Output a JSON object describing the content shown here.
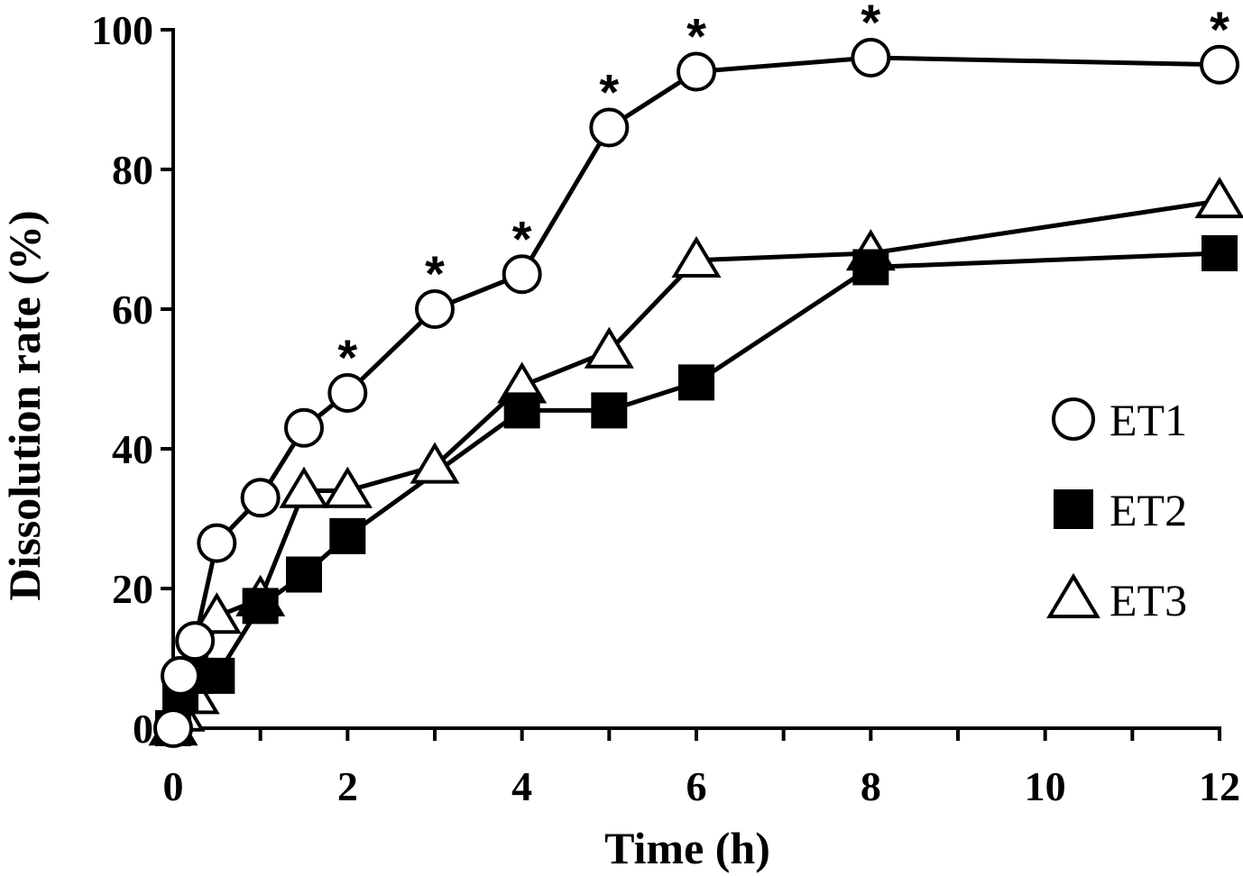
{
  "chart_data": {
    "type": "line",
    "xlabel": "Time (h)",
    "ylabel": "Dissolution rate  (%)",
    "xlim": [
      0,
      12
    ],
    "ylim": [
      0,
      100
    ],
    "x_ticks": [
      0,
      2,
      4,
      6,
      8,
      10,
      12
    ],
    "y_ticks": [
      0,
      20,
      40,
      60,
      80,
      100
    ],
    "grid": false,
    "legend_position": "right-middle",
    "series": [
      {
        "name": "ET1",
        "marker": "open-circle",
        "color": "#000000",
        "x": [
          0,
          0.083,
          0.25,
          0.5,
          1,
          1.5,
          2,
          3,
          4,
          5,
          6,
          8,
          12
        ],
        "y": [
          0,
          7.5,
          12.5,
          26.5,
          33,
          43,
          48,
          60,
          65,
          86,
          94,
          96,
          95
        ]
      },
      {
        "name": "ET2",
        "marker": "filled-square",
        "color": "#000000",
        "x": [
          0,
          0.083,
          0.25,
          0.5,
          1,
          1.5,
          2,
          4,
          5,
          6,
          8,
          12
        ],
        "y": [
          0,
          5,
          7.5,
          7.5,
          17.5,
          22,
          27.5,
          45.5,
          45.5,
          49.5,
          66,
          68
        ]
      },
      {
        "name": "ET3",
        "marker": "open-triangle",
        "color": "#000000",
        "x": [
          0,
          0.083,
          0.25,
          0.5,
          1,
          1.5,
          2,
          3,
          4,
          5,
          6,
          8,
          12
        ],
        "y": [
          0,
          2,
          4.5,
          16,
          18.5,
          34,
          34,
          37.5,
          49,
          54,
          67,
          68,
          75.5
        ]
      }
    ],
    "significance": {
      "symbol": "*",
      "x": [
        2,
        3,
        4,
        5,
        6,
        8,
        12
      ]
    }
  }
}
